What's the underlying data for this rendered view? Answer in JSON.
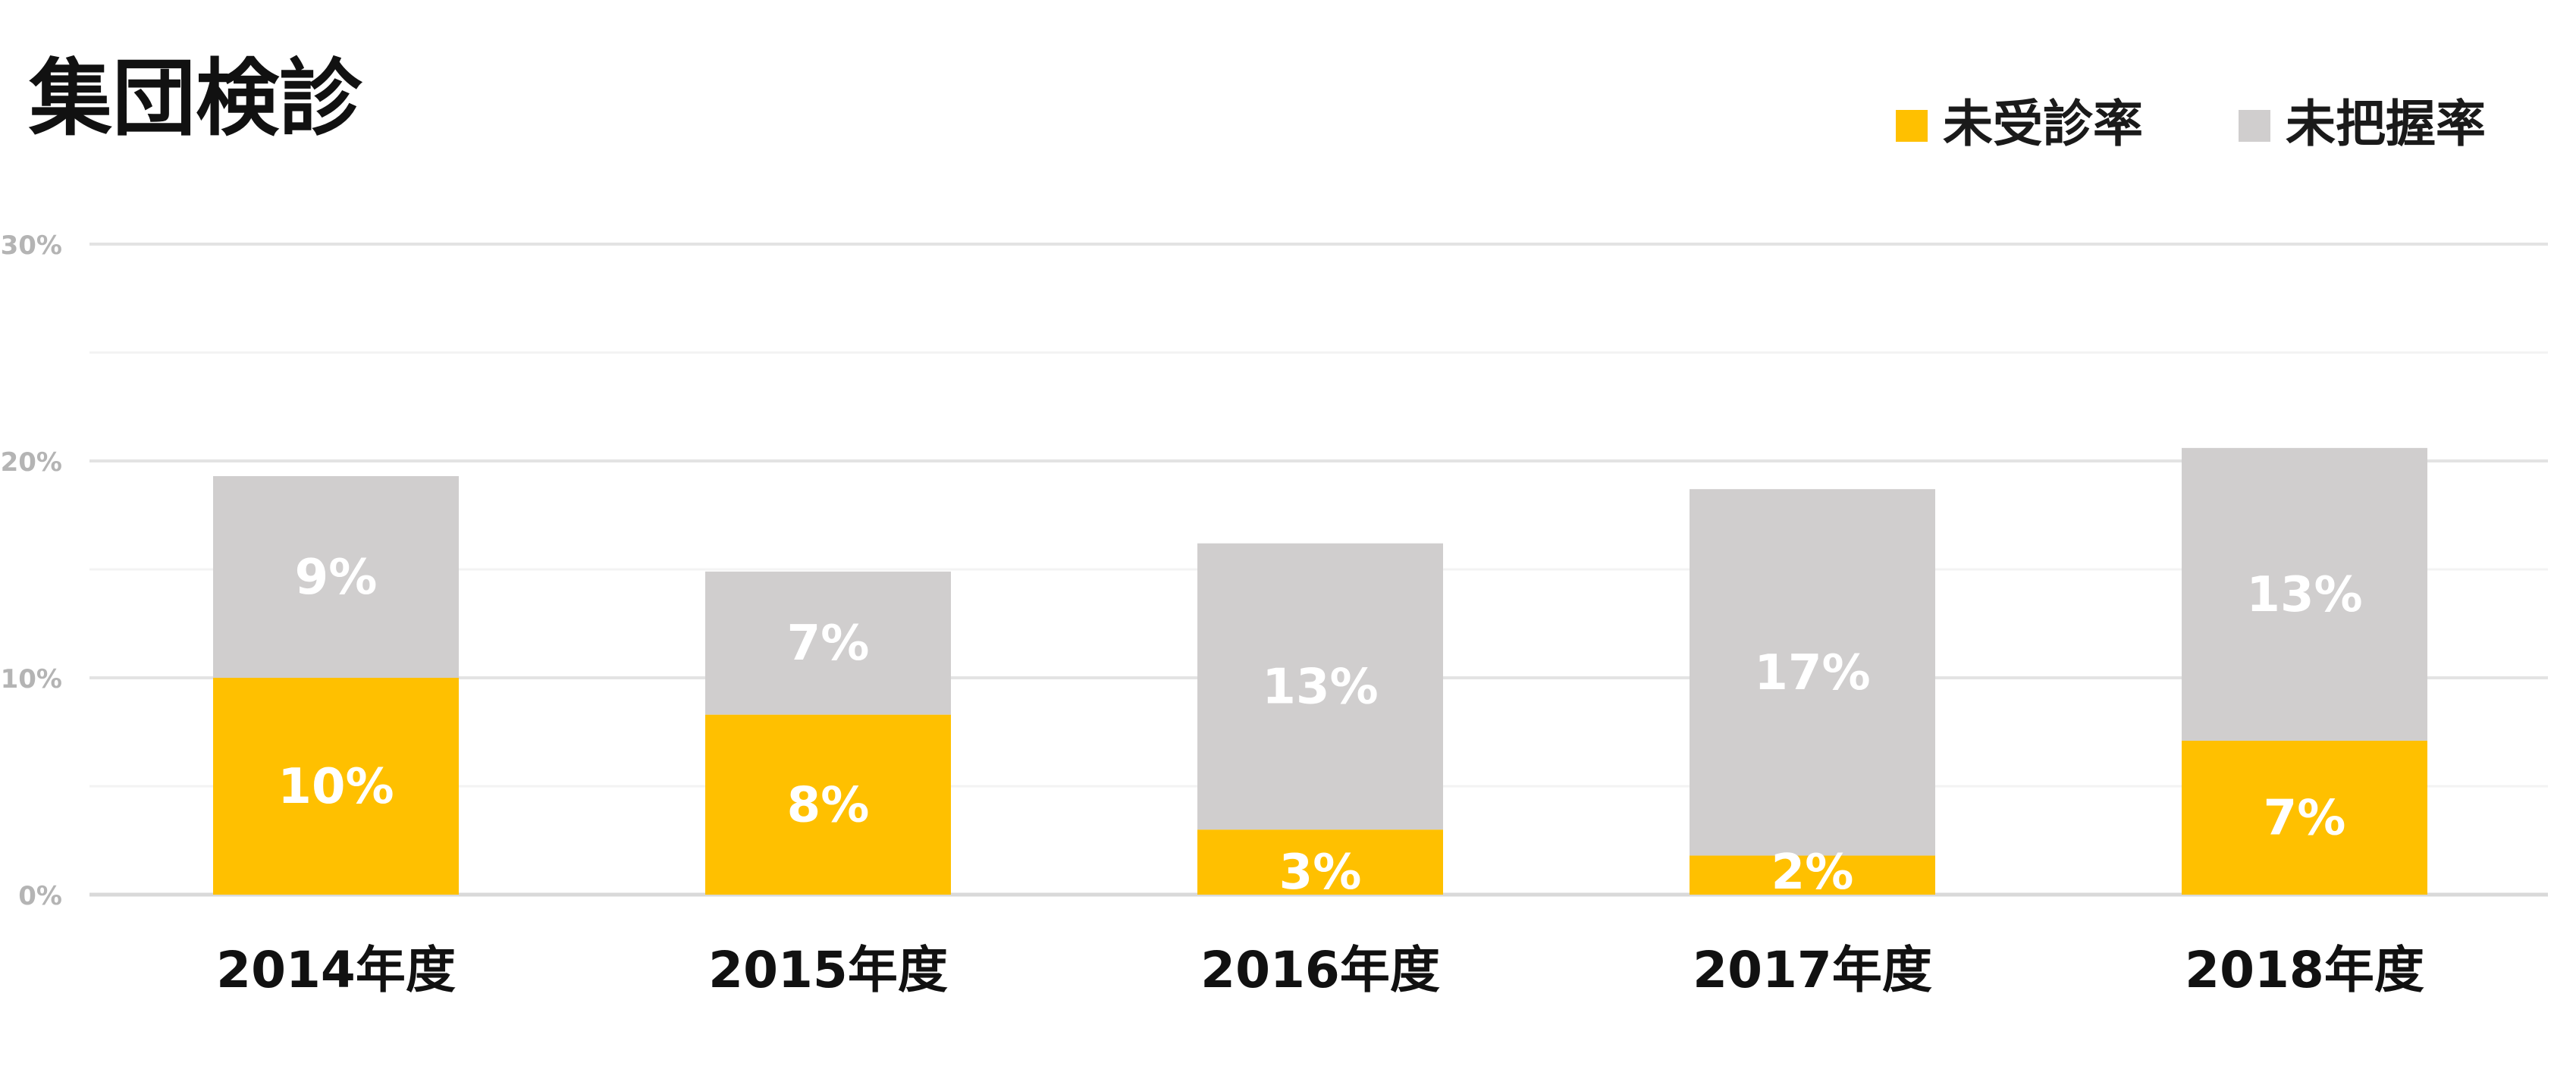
{
  "chart_data": {
    "type": "bar",
    "stacked": true,
    "title": "集団検診",
    "categories": [
      "2014年度",
      "2015年度",
      "2016年度",
      "2017年度",
      "2018年度"
    ],
    "series": [
      {
        "name": "未受診率",
        "color": "#FFC000",
        "values": [
          10,
          8.3,
          3,
          1.8,
          7.1
        ],
        "labels": [
          "10%",
          "8%",
          "3%",
          "2%",
          "7%"
        ]
      },
      {
        "name": "未把握率",
        "color": "#D0CECE",
        "values": [
          9.3,
          6.6,
          13.2,
          16.9,
          13.5
        ],
        "labels": [
          "9%",
          "7%",
          "13%",
          "17%",
          "13%"
        ]
      }
    ],
    "ylim": [
      0,
      30
    ],
    "yticks": [
      0,
      10,
      20,
      30
    ],
    "ytick_labels": [
      "0%",
      "10%",
      "20%",
      "30%"
    ],
    "minor_gridlines": [
      5,
      15,
      25
    ],
    "grid": true,
    "legend_position": "top-right",
    "xlabel": "",
    "ylabel": ""
  }
}
